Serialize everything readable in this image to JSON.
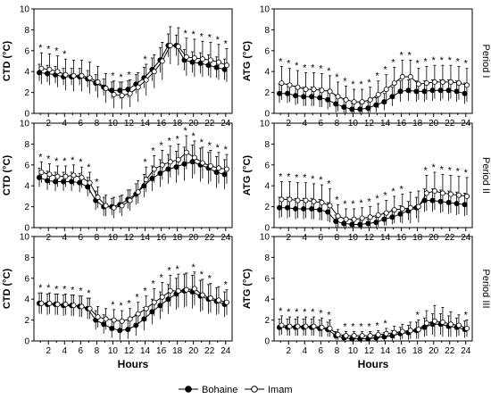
{
  "legend": {
    "series1": "Bohaine",
    "series2": "Imam"
  },
  "colors": {
    "series1": "#000000",
    "series2": "#ffffff",
    "line": "#000000"
  },
  "chart_data": [
    {
      "type": "line",
      "row": 0,
      "col": 0,
      "ylabel": "CTD (°C)",
      "xlabel": "",
      "period": "",
      "ylim": [
        0,
        10
      ],
      "yticks": [
        0,
        2,
        4,
        6,
        8,
        10
      ],
      "x": [
        1,
        2,
        3,
        4,
        5,
        6,
        7,
        8,
        9,
        10,
        11,
        12,
        13,
        14,
        15,
        16,
        17,
        18,
        19,
        20,
        21,
        22,
        23,
        24
      ],
      "series": [
        {
          "name": "Bohaine",
          "values": [
            3.9,
            3.8,
            3.7,
            3.5,
            3.5,
            3.5,
            3.3,
            2.9,
            2.5,
            2.2,
            2.2,
            2.3,
            2.8,
            3.4,
            4.2,
            5.1,
            6.5,
            6.5,
            5.1,
            4.9,
            4.8,
            4.6,
            4.4,
            4.2
          ],
          "errors": [
            0.8,
            0.8,
            0.8,
            0.8,
            0.8,
            0.8,
            0.8,
            0.8,
            0.8,
            0.8,
            0.8,
            0.8,
            0.9,
            1.0,
            1.1,
            1.2,
            1.1,
            1.0,
            1.0,
            1.0,
            1.0,
            1.0,
            1.0,
            1.0
          ]
        },
        {
          "name": "Imam",
          "values": [
            4.3,
            4.2,
            4.0,
            3.7,
            3.6,
            3.6,
            3.4,
            3.0,
            2.4,
            1.8,
            1.7,
            1.9,
            2.5,
            3.2,
            4.0,
            5.0,
            6.5,
            6.4,
            5.4,
            5.3,
            5.2,
            5.1,
            4.9,
            4.6
          ],
          "errors": [
            1.5,
            1.5,
            1.5,
            1.5,
            1.5,
            1.5,
            1.5,
            1.5,
            1.4,
            1.3,
            1.3,
            1.3,
            1.4,
            1.5,
            1.6,
            1.8,
            1.8,
            1.8,
            1.8,
            1.8,
            1.7,
            1.7,
            1.7,
            1.6
          ]
        }
      ],
      "star_hours": [
        1,
        2,
        3,
        4,
        10,
        11,
        12,
        14,
        19,
        20,
        21,
        22,
        23,
        24
      ]
    },
    {
      "type": "line",
      "row": 0,
      "col": 1,
      "ylabel": "ATG (°C)",
      "xlabel": "",
      "period": "Period I",
      "ylim": [
        0,
        10
      ],
      "yticks": [
        0,
        2,
        4,
        6,
        8,
        10
      ],
      "x": [
        1,
        2,
        3,
        4,
        5,
        6,
        7,
        8,
        9,
        10,
        11,
        12,
        13,
        14,
        15,
        16,
        17,
        18,
        19,
        20,
        21,
        22,
        23,
        24
      ],
      "series": [
        {
          "name": "Bohaine",
          "values": [
            1.9,
            1.9,
            1.7,
            1.6,
            1.6,
            1.5,
            1.3,
            0.9,
            0.6,
            0.4,
            0.4,
            0.5,
            0.8,
            1.1,
            1.6,
            2.1,
            2.2,
            2.1,
            2.1,
            2.2,
            2.2,
            2.2,
            2.1,
            1.9
          ],
          "errors": [
            0.9,
            0.9,
            0.9,
            0.9,
            0.9,
            0.9,
            0.9,
            0.8,
            0.7,
            0.6,
            0.6,
            0.6,
            0.7,
            0.8,
            0.9,
            1.0,
            1.0,
            1.0,
            1.0,
            1.0,
            1.0,
            1.0,
            1.0,
            1.0
          ]
        },
        {
          "name": "Imam",
          "values": [
            2.9,
            2.7,
            2.5,
            2.3,
            2.3,
            2.2,
            2.1,
            1.6,
            1.3,
            1.1,
            1.1,
            1.3,
            1.8,
            2.3,
            2.9,
            3.5,
            3.5,
            2.8,
            2.9,
            3.0,
            3.0,
            3.0,
            2.9,
            2.7
          ],
          "errors": [
            1.6,
            1.6,
            1.6,
            1.6,
            1.6,
            1.6,
            1.5,
            1.4,
            1.3,
            1.2,
            1.2,
            1.2,
            1.3,
            1.4,
            1.5,
            1.6,
            1.6,
            1.5,
            1.6,
            1.6,
            1.6,
            1.6,
            1.6,
            1.6
          ]
        }
      ],
      "star_hours": [
        1,
        2,
        3,
        4,
        5,
        6,
        7,
        8,
        9,
        10,
        11,
        12,
        13,
        14,
        15,
        16,
        17,
        18,
        19,
        20,
        21,
        22,
        23,
        24
      ]
    },
    {
      "type": "line",
      "row": 1,
      "col": 0,
      "ylabel": "CTD (°C)",
      "xlabel": "",
      "period": "",
      "ylim": [
        0,
        10
      ],
      "yticks": [
        0,
        2,
        4,
        6,
        8,
        10
      ],
      "x": [
        1,
        2,
        3,
        4,
        5,
        6,
        7,
        8,
        9,
        10,
        11,
        12,
        13,
        14,
        15,
        16,
        17,
        18,
        19,
        20,
        21,
        22,
        23,
        24
      ],
      "series": [
        {
          "name": "Bohaine",
          "values": [
            4.8,
            4.5,
            4.4,
            4.4,
            4.4,
            4.3,
            3.9,
            2.6,
            2.0,
            2.0,
            2.2,
            2.7,
            3.2,
            4.0,
            4.7,
            5.2,
            5.6,
            5.8,
            6.1,
            6.3,
            6.0,
            5.7,
            5.3,
            5.1
          ],
          "errors": [
            0.9,
            0.9,
            0.9,
            0.9,
            0.9,
            0.9,
            0.9,
            0.9,
            0.9,
            0.8,
            0.8,
            0.9,
            1.0,
            1.1,
            1.2,
            1.3,
            1.4,
            1.5,
            1.6,
            1.6,
            1.6,
            1.5,
            1.5,
            1.4
          ]
        },
        {
          "name": "Imam",
          "values": [
            5.3,
            5.1,
            4.9,
            4.9,
            5.0,
            4.8,
            4.3,
            2.9,
            2.1,
            1.9,
            2.1,
            2.6,
            3.4,
            4.6,
            5.6,
            6.0,
            6.3,
            6.5,
            7.2,
            6.7,
            6.2,
            5.9,
            5.7,
            5.6
          ],
          "errors": [
            1.0,
            1.0,
            1.0,
            1.0,
            1.0,
            1.0,
            1.0,
            1.0,
            1.0,
            1.0,
            1.0,
            1.0,
            1.1,
            1.2,
            1.3,
            1.4,
            1.5,
            1.5,
            1.6,
            1.6,
            1.5,
            1.5,
            1.5,
            1.4
          ]
        }
      ],
      "star_hours": [
        1,
        2,
        3,
        4,
        5,
        6,
        7,
        8,
        14,
        15,
        16,
        17,
        18,
        19,
        20,
        21,
        22,
        23,
        24
      ]
    },
    {
      "type": "line",
      "row": 1,
      "col": 1,
      "ylabel": "ATG (°C)",
      "xlabel": "",
      "period": "Period II",
      "ylim": [
        0,
        10
      ],
      "yticks": [
        0,
        2,
        4,
        6,
        8,
        10
      ],
      "x": [
        1,
        2,
        3,
        4,
        5,
        6,
        7,
        8,
        9,
        10,
        11,
        12,
        13,
        14,
        15,
        16,
        17,
        18,
        19,
        20,
        21,
        22,
        23,
        24
      ],
      "series": [
        {
          "name": "Bohaine",
          "values": [
            1.9,
            1.9,
            1.8,
            1.8,
            1.8,
            1.7,
            1.5,
            0.6,
            0.4,
            0.3,
            0.3,
            0.4,
            0.5,
            0.8,
            1.0,
            1.3,
            1.6,
            1.9,
            2.6,
            2.6,
            2.5,
            2.4,
            2.3,
            2.2
          ],
          "errors": [
            1.0,
            1.0,
            1.0,
            1.0,
            1.0,
            1.0,
            0.9,
            0.6,
            0.5,
            0.4,
            0.4,
            0.4,
            0.5,
            0.6,
            0.7,
            0.8,
            0.9,
            1.0,
            1.1,
            1.1,
            1.1,
            1.1,
            1.1,
            1.1
          ]
        },
        {
          "name": "Imam",
          "values": [
            2.7,
            2.7,
            2.6,
            2.6,
            2.5,
            2.4,
            2.1,
            1.1,
            0.8,
            0.8,
            0.9,
            1.0,
            1.2,
            1.4,
            1.7,
            1.8,
            1.9,
            2.0,
            3.3,
            3.5,
            3.3,
            3.2,
            3.1,
            3.0
          ],
          "errors": [
            1.7,
            1.7,
            1.7,
            1.7,
            1.7,
            1.7,
            1.6,
            1.1,
            1.0,
            1.0,
            1.0,
            1.0,
            1.1,
            1.2,
            1.3,
            1.4,
            1.5,
            1.5,
            1.7,
            1.8,
            1.8,
            1.8,
            1.8,
            1.8
          ]
        }
      ],
      "star_hours": [
        1,
        2,
        3,
        4,
        5,
        6,
        7,
        8,
        9,
        10,
        11,
        12,
        13,
        14,
        15,
        16,
        19,
        20,
        21,
        22,
        23,
        24
      ]
    },
    {
      "type": "line",
      "row": 2,
      "col": 0,
      "ylabel": "CTD (°C)",
      "xlabel": "Hours",
      "period": "",
      "ylim": [
        0,
        10
      ],
      "yticks": [
        0,
        2,
        4,
        6,
        8,
        10
      ],
      "x": [
        1,
        2,
        3,
        4,
        5,
        6,
        7,
        8,
        9,
        10,
        11,
        12,
        13,
        14,
        15,
        16,
        17,
        18,
        19,
        20,
        21,
        22,
        23,
        24
      ],
      "series": [
        {
          "name": "Bohaine",
          "values": [
            3.6,
            3.5,
            3.5,
            3.4,
            3.4,
            3.3,
            3.1,
            2.0,
            1.6,
            1.2,
            1.0,
            1.1,
            1.5,
            2.1,
            2.8,
            3.4,
            4.0,
            4.5,
            4.8,
            4.7,
            4.3,
            4.0,
            3.8,
            3.5
          ],
          "errors": [
            1.0,
            1.0,
            1.0,
            1.0,
            1.0,
            1.0,
            1.0,
            0.9,
            0.9,
            0.9,
            0.9,
            0.9,
            1.0,
            1.1,
            1.2,
            1.3,
            1.4,
            1.5,
            1.6,
            1.6,
            1.5,
            1.4,
            1.3,
            1.2
          ]
        },
        {
          "name": "Imam",
          "values": [
            3.6,
            3.6,
            3.5,
            3.5,
            3.4,
            3.3,
            3.1,
            2.3,
            2.1,
            2.0,
            1.9,
            2.1,
            2.6,
            3.1,
            3.7,
            4.2,
            4.8,
            4.8,
            4.9,
            5.0,
            4.4,
            4.1,
            3.9,
            3.7
          ],
          "errors": [
            1.0,
            1.0,
            1.0,
            1.0,
            1.0,
            1.0,
            1.0,
            1.0,
            1.0,
            1.0,
            1.0,
            1.0,
            1.1,
            1.2,
            1.3,
            1.4,
            1.5,
            1.6,
            1.6,
            1.6,
            1.5,
            1.4,
            1.3,
            1.2
          ]
        }
      ],
      "star_hours": [
        1,
        2,
        3,
        4,
        5,
        6,
        7,
        10,
        11,
        12,
        13,
        14,
        15,
        16,
        17,
        18,
        20,
        21,
        22,
        24
      ]
    },
    {
      "type": "line",
      "row": 2,
      "col": 1,
      "ylabel": "ATG (°C)",
      "xlabel": "Hours",
      "period": "Period III",
      "ylim": [
        0,
        10
      ],
      "yticks": [
        0,
        2,
        4,
        6,
        8,
        10
      ],
      "x": [
        1,
        2,
        3,
        4,
        5,
        6,
        7,
        8,
        9,
        10,
        11,
        12,
        13,
        14,
        15,
        16,
        17,
        18,
        19,
        20,
        21,
        22,
        23,
        24
      ],
      "series": [
        {
          "name": "Bohaine",
          "values": [
            1.3,
            1.3,
            1.3,
            1.3,
            1.3,
            1.2,
            1.1,
            0.5,
            0.3,
            0.2,
            0.2,
            0.2,
            0.3,
            0.4,
            0.5,
            0.7,
            0.8,
            1.0,
            1.3,
            1.6,
            1.6,
            1.4,
            1.3,
            1.1
          ],
          "errors": [
            0.8,
            0.8,
            0.8,
            0.8,
            0.8,
            0.8,
            0.7,
            0.4,
            0.3,
            0.3,
            0.3,
            0.3,
            0.3,
            0.4,
            0.5,
            0.6,
            0.7,
            0.8,
            0.9,
            1.0,
            1.0,
            1.0,
            0.9,
            0.8
          ]
        },
        {
          "name": "Imam",
          "values": [
            1.5,
            1.4,
            1.4,
            1.4,
            1.4,
            1.3,
            1.2,
            0.6,
            0.5,
            0.5,
            0.5,
            0.5,
            0.6,
            0.7,
            0.8,
            0.9,
            1.0,
            1.1,
            1.7,
            1.9,
            1.8,
            1.6,
            1.5,
            1.2
          ],
          "errors": [
            0.9,
            0.9,
            0.9,
            0.9,
            0.9,
            0.9,
            0.8,
            0.5,
            0.4,
            0.4,
            0.4,
            0.4,
            0.4,
            0.5,
            0.6,
            0.7,
            0.8,
            0.9,
            1.2,
            1.5,
            1.4,
            1.2,
            1.0,
            0.8
          ]
        }
      ],
      "star_hours": [
        1,
        2,
        3,
        4,
        5,
        6,
        7,
        9,
        10,
        11,
        12,
        13,
        14,
        18,
        24
      ]
    }
  ]
}
